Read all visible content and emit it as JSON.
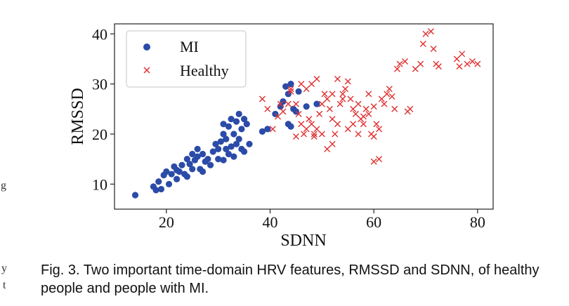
{
  "caption": "Fig. 3. Two important time-domain HRV features, RMSSD and SDNN, of healthy people and people with MI.",
  "edge_marks": [
    "g",
    "y",
    "t"
  ],
  "chart_data": {
    "type": "scatter",
    "title": "",
    "xlabel": "SDNN",
    "ylabel": "RMSSD",
    "xlim": [
      10,
      83
    ],
    "ylim": [
      5,
      42
    ],
    "xticks": [
      20,
      40,
      60,
      80
    ],
    "yticks": [
      10,
      20,
      30,
      40
    ],
    "grid": false,
    "legend_position": "top-left",
    "series": [
      {
        "name": "MI",
        "marker": "circle",
        "color": "#2b4ba8",
        "points": [
          [
            14,
            7.8
          ],
          [
            17.5,
            9.5
          ],
          [
            18,
            8.8
          ],
          [
            18.5,
            10.5
          ],
          [
            19,
            9
          ],
          [
            19.5,
            11.8
          ],
          [
            20,
            12.5
          ],
          [
            20.5,
            10
          ],
          [
            21,
            12
          ],
          [
            21.5,
            13.5
          ],
          [
            22,
            11
          ],
          [
            22.5,
            12.5
          ],
          [
            23,
            13.8
          ],
          [
            23.5,
            12
          ],
          [
            24,
            15
          ],
          [
            24.5,
            14
          ],
          [
            25,
            16
          ],
          [
            25.5,
            14.8
          ],
          [
            26,
            17
          ],
          [
            26,
            15.5
          ],
          [
            26.5,
            13
          ],
          [
            27,
            16
          ],
          [
            27.5,
            14.5
          ],
          [
            28,
            15
          ],
          [
            28.5,
            13.8
          ],
          [
            29,
            16.5
          ],
          [
            29.5,
            18
          ],
          [
            30,
            17
          ],
          [
            30.5,
            18.5
          ],
          [
            31,
            20
          ],
          [
            31.5,
            19
          ],
          [
            31,
            22
          ],
          [
            32,
            21.5
          ],
          [
            32.5,
            23
          ],
          [
            33,
            20
          ],
          [
            33.5,
            22.5
          ],
          [
            34,
            24
          ],
          [
            34.5,
            21
          ],
          [
            35,
            23
          ],
          [
            35.5,
            22
          ],
          [
            31.5,
            17
          ],
          [
            32,
            16
          ],
          [
            32.5,
            17.5
          ],
          [
            33,
            15.5
          ],
          [
            33.5,
            18
          ],
          [
            34,
            19
          ],
          [
            34.5,
            17
          ],
          [
            35,
            16.5
          ],
          [
            30,
            15
          ],
          [
            31,
            14.8
          ],
          [
            27,
            12.5
          ],
          [
            25,
            13
          ],
          [
            24,
            11.5
          ],
          [
            22,
            12.8
          ],
          [
            36,
            18
          ],
          [
            38.5,
            20.5
          ],
          [
            39.5,
            21
          ],
          [
            41,
            24
          ],
          [
            42,
            25.5
          ],
          [
            42.5,
            26.5
          ],
          [
            43,
            29.5
          ],
          [
            43.5,
            28
          ],
          [
            44,
            30
          ],
          [
            44.5,
            25
          ],
          [
            45,
            24.5
          ],
          [
            45.5,
            28.5
          ],
          [
            43.5,
            22
          ],
          [
            44,
            21.5
          ],
          [
            47,
            25.5
          ],
          [
            49,
            26
          ]
        ]
      },
      {
        "name": "Healthy",
        "marker": "x",
        "color": "#e03030",
        "points": [
          [
            38.5,
            27
          ],
          [
            39.5,
            25
          ],
          [
            40.5,
            21
          ],
          [
            41.5,
            23.5
          ],
          [
            42.5,
            24.5
          ],
          [
            43.5,
            26
          ],
          [
            44,
            29
          ],
          [
            45,
            26
          ],
          [
            45.5,
            24
          ],
          [
            46,
            22
          ],
          [
            46.5,
            20
          ],
          [
            47,
            21
          ],
          [
            47.5,
            23
          ],
          [
            48,
            22
          ],
          [
            48.5,
            20
          ],
          [
            49,
            21
          ],
          [
            49.5,
            24
          ],
          [
            50,
            26
          ],
          [
            50.5,
            28
          ],
          [
            51,
            27
          ],
          [
            51.5,
            25
          ],
          [
            52,
            23
          ],
          [
            52.5,
            20
          ],
          [
            53,
            22
          ],
          [
            53.5,
            26
          ],
          [
            54,
            28
          ],
          [
            54.5,
            29
          ],
          [
            55,
            30.5
          ],
          [
            55.5,
            27
          ],
          [
            56,
            25
          ],
          [
            56.5,
            24
          ],
          [
            57,
            26
          ],
          [
            57.5,
            23
          ],
          [
            58,
            22
          ],
          [
            58.5,
            25
          ],
          [
            59,
            24
          ],
          [
            59.5,
            20
          ],
          [
            60,
            19.5
          ],
          [
            60.5,
            22
          ],
          [
            61,
            21
          ],
          [
            61.5,
            27
          ],
          [
            62,
            26
          ],
          [
            62.5,
            28
          ],
          [
            63,
            29
          ],
          [
            63.5,
            27.5
          ],
          [
            64,
            25
          ],
          [
            64.5,
            33
          ],
          [
            65,
            34
          ],
          [
            66,
            34.5
          ],
          [
            66.5,
            24.5
          ],
          [
            67,
            25
          ],
          [
            68,
            33
          ],
          [
            69,
            34
          ],
          [
            69.5,
            38
          ],
          [
            70,
            40
          ],
          [
            71,
            40.5
          ],
          [
            71.5,
            37
          ],
          [
            72,
            34
          ],
          [
            72.5,
            33.5
          ],
          [
            76,
            35
          ],
          [
            76.5,
            33.5
          ],
          [
            77,
            36
          ],
          [
            78,
            34
          ],
          [
            79,
            34.5
          ],
          [
            80,
            34
          ],
          [
            60,
            14.5
          ],
          [
            61,
            15
          ],
          [
            51,
            17
          ],
          [
            52,
            18
          ],
          [
            49,
            31
          ],
          [
            48,
            30
          ],
          [
            46,
            30
          ],
          [
            47,
            29
          ],
          [
            44,
            28.5
          ],
          [
            42,
            26
          ],
          [
            53,
            31
          ],
          [
            54,
            27
          ],
          [
            56,
            22
          ],
          [
            57,
            20
          ],
          [
            58,
            23.5
          ],
          [
            50,
            20
          ],
          [
            48.5,
            19.5
          ],
          [
            45,
            19.5
          ],
          [
            52,
            28
          ],
          [
            55,
            21
          ],
          [
            59,
            28
          ],
          [
            60,
            25.5
          ]
        ]
      }
    ]
  }
}
